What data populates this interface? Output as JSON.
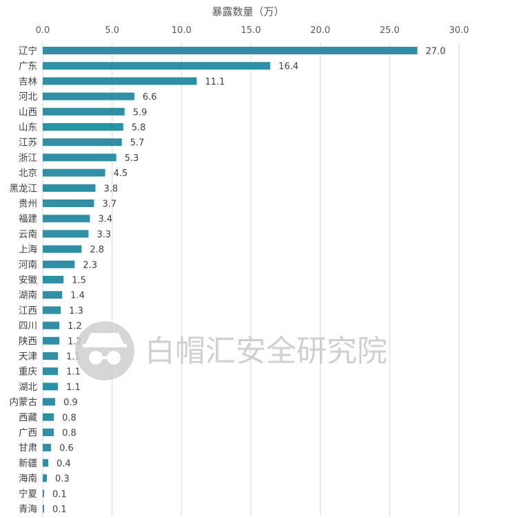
{
  "chart_data": {
    "type": "bar",
    "orientation": "horizontal",
    "xlabel": "暴露数量（万）",
    "xaxis_position": "top",
    "xlim": [
      0,
      30
    ],
    "xticks": [
      "0.0",
      "5.0",
      "10.0",
      "15.0",
      "20.0",
      "25.0",
      "30.0"
    ],
    "grid": true,
    "bar_color": "#2f8fa5",
    "categories": [
      "辽宁",
      "广东",
      "吉林",
      "河北",
      "山西",
      "山东",
      "江苏",
      "浙江",
      "北京",
      "黑龙江",
      "贵州",
      "福建",
      "云南",
      "上海",
      "河南",
      "安徽",
      "湖南",
      "江西",
      "四川",
      "陕西",
      "天津",
      "重庆",
      "湖北",
      "内蒙古",
      "西藏",
      "广西",
      "甘肃",
      "新疆",
      "海南",
      "宁夏",
      "青海"
    ],
    "values": [
      27.0,
      16.4,
      11.1,
      6.6,
      5.9,
      5.8,
      5.7,
      5.3,
      4.5,
      3.8,
      3.7,
      3.4,
      3.3,
      2.8,
      2.3,
      1.5,
      1.4,
      1.3,
      1.2,
      1.2,
      1.1,
      1.1,
      1.1,
      0.9,
      0.8,
      0.8,
      0.6,
      0.4,
      0.3,
      0.1,
      0.1
    ],
    "value_labels": [
      "27.0",
      "16.4",
      "11.1",
      "6.6",
      "5.9",
      "5.8",
      "5.7",
      "5.3",
      "4.5",
      "3.8",
      "3.7",
      "3.4",
      "3.3",
      "2.8",
      "2.3",
      "1.5",
      "1.4",
      "1.3",
      "1.2",
      "1.2",
      "1.1",
      "1.1",
      "1.1",
      "0.9",
      "0.8",
      "0.8",
      "0.6",
      "0.4",
      "0.3",
      "0.1",
      "0.1"
    ]
  },
  "watermark": {
    "text": "白帽汇安全研究院",
    "icon": "hat-glasses-logo-icon"
  }
}
